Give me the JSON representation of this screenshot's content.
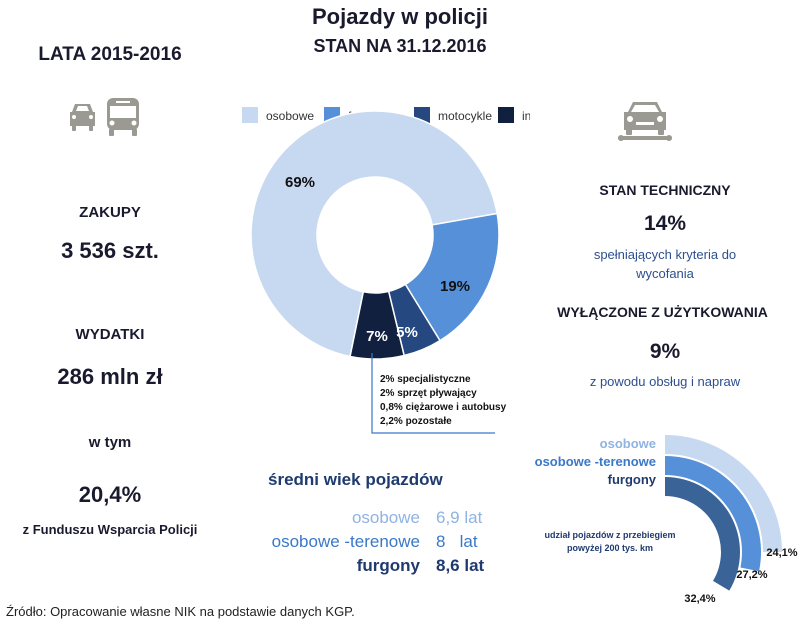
{
  "title": "Pojazdy w policji",
  "subtitle": "STAN NA 31.12.2016",
  "left": {
    "period": "LATA 2015-2016",
    "purchases_label": "ZAKUPY",
    "purchases_value": "3 536 szt.",
    "spending_label": "WYDATKI",
    "spending_value": "286 mln zł",
    "including_label": "w tym",
    "fund_value": "20,4%",
    "fund_label": "z Funduszu Wsparcia Policji",
    "icon": "taxi-bus-icon"
  },
  "right": {
    "icon": "car-wrench-icon",
    "tech_label": "STAN TECHNICZNY",
    "tech_value": "14%",
    "tech_desc_1": "spełniających kryteria do",
    "tech_desc_2": "wycofania",
    "excluded_label": "WYŁĄCZONE Z UŻYTKOWANIA",
    "excluded_value": "9%",
    "excluded_desc": "z powodu obsług i napraw"
  },
  "age": {
    "title": "średni wiek pojazdów",
    "rows": [
      {
        "name": "osobowe",
        "value": "6,9 lat",
        "color": "#8fb3e3"
      },
      {
        "name": "osobowe -terenowe",
        "value": "8   lat",
        "color": "#3a78c9"
      },
      {
        "name": "furgony",
        "value": "8,6 lat",
        "color": "#1f3a6e"
      }
    ]
  },
  "chart_data": [
    {
      "type": "pie",
      "variant": "donut",
      "legend_position": "top",
      "categories": [
        "osobowe",
        "furgony",
        "motocykle",
        "inne"
      ],
      "values": [
        69,
        19,
        5,
        7
      ],
      "labels": [
        "69%",
        "19%",
        "5%",
        "7%"
      ],
      "colors": [
        "#c6d9f1",
        "#5590d9",
        "#24487f",
        "#11203f"
      ],
      "annotation": [
        "2% specjalistyczne",
        "2% sprzęt pływający",
        "0,8% ciężarowe i autobusy",
        "2,2% pozostałe"
      ]
    },
    {
      "type": "radial-bar",
      "annotation": "udział pojazdów z przebiegiem powyżej 200 tys. km",
      "categories": [
        "osobowe",
        "osobowe -terenowe",
        "furgony"
      ],
      "values": [
        24.1,
        27.2,
        32.4
      ],
      "labels": [
        "24,1%",
        "27,2%",
        "32,4%"
      ],
      "colors": [
        "#c6d9f1",
        "#5590d9",
        "#3a6398"
      ],
      "label_colors": [
        "#8fb3e3",
        "#3a78c9",
        "#1f3a6e"
      ]
    }
  ],
  "footer": "Źródło: Opracowanie  własne NIK na podstawie danych KGP."
}
